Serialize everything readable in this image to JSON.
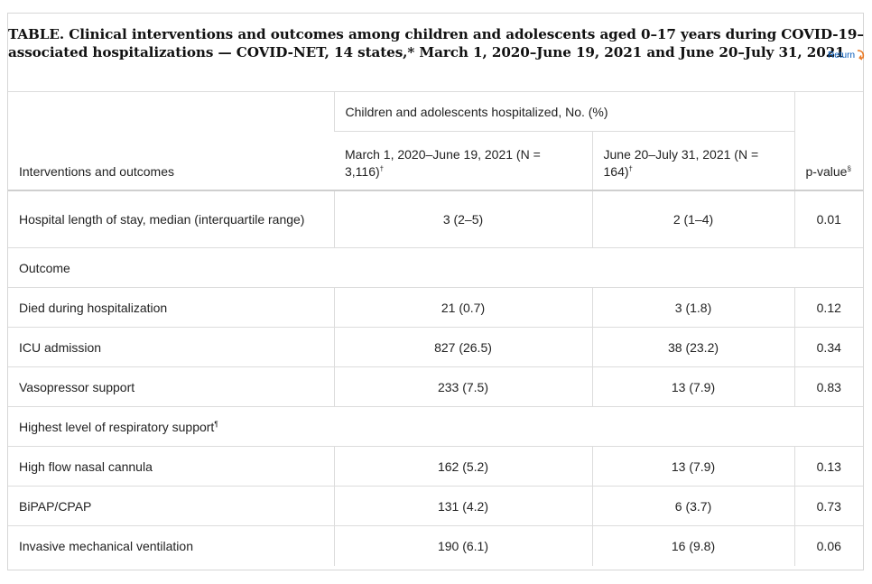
{
  "caption": {
    "line1": "TABLE. Clinical interventions and outcomes among children and adolescents aged 0–17 years during COVID-19–",
    "line2": "associated hospitalizations — COVID-NET, 14 states,* March 1, 2020–June 19, 2021 and June 20–July 31, 2021"
  },
  "return_label": "Return",
  "header": {
    "group": "Children and adolescents hospitalized, No. (%)",
    "col1": "Interventions and outcomes",
    "col2": "March 1, 2020–June 19, 2021 (N = 3,116)",
    "col2_sup": "†",
    "col3": "June 20–July 31, 2021 (N = 164)",
    "col3_sup": "†",
    "col4": "p-value",
    "col4_sup": "§"
  },
  "rows": [
    {
      "label": "Hospital length of stay, median (interquartile range)",
      "a": "3 (2–5)",
      "b": "2 (1–4)",
      "p": "0.01"
    },
    {
      "section": "Outcome"
    },
    {
      "label": "Died during hospitalization",
      "a": "21 (0.7)",
      "b": "3 (1.8)",
      "p": "0.12"
    },
    {
      "label": "ICU admission",
      "a": "827 (26.5)",
      "b": "38 (23.2)",
      "p": "0.34"
    },
    {
      "label": "Vasopressor support",
      "a": "233 (7.5)",
      "b": "13 (7.9)",
      "p": "0.83"
    },
    {
      "section": "Highest level of respiratory support",
      "section_sup": "¶"
    },
    {
      "label": "High flow nasal cannula",
      "a": "162 (5.2)",
      "b": "13 (7.9)",
      "p": "0.13"
    },
    {
      "label": "BiPAP/CPAP",
      "a": "131 (4.2)",
      "b": "6 (3.7)",
      "p": "0.73"
    },
    {
      "label": "Invasive mechanical ventilation",
      "a": "190 (6.1)",
      "b": "16 (9.8)",
      "p": "0.06"
    }
  ],
  "colors": {
    "return_link": "#0057b8",
    "return_arrow": "#e87722"
  }
}
